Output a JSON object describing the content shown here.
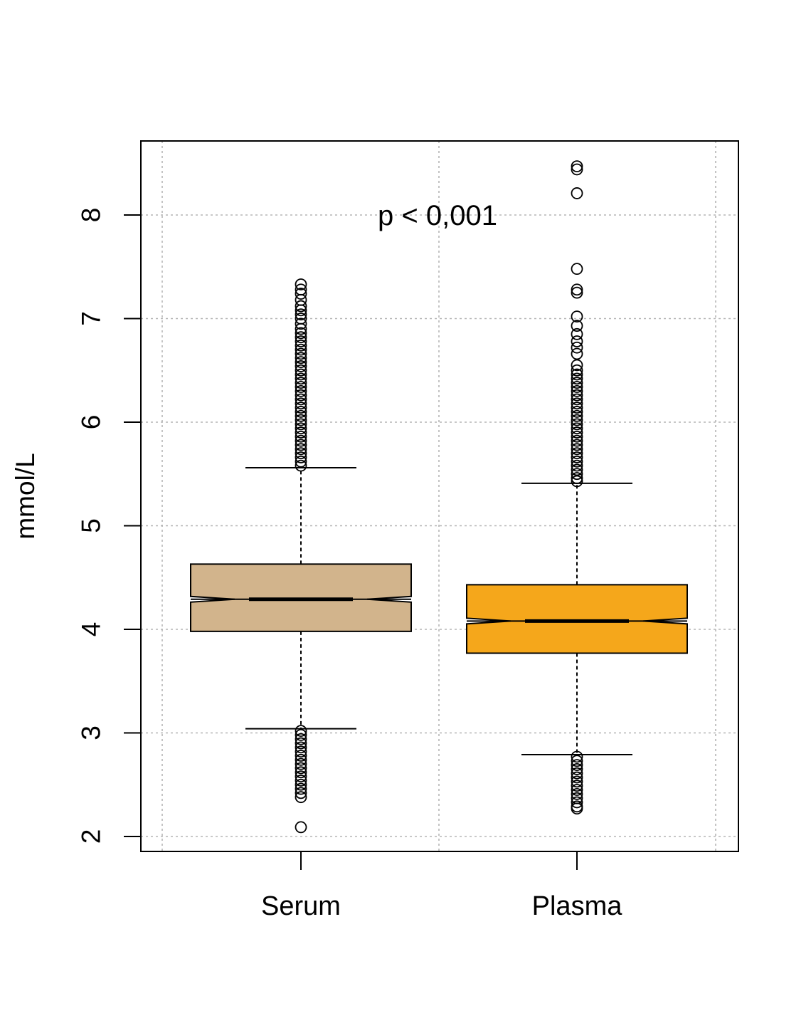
{
  "chart_data": {
    "type": "box",
    "title": "",
    "xlabel": "",
    "ylabel": "mmol/L",
    "ylim": [
      1.85,
      8.75
    ],
    "yticks": [
      2,
      3,
      4,
      5,
      6,
      7,
      8
    ],
    "grid": true,
    "notched": true,
    "annotation": "p < 0,001",
    "categories": [
      "Serum",
      "Plasma"
    ],
    "boxes": [
      {
        "category": "Serum",
        "color": "#d2b48c",
        "q1": 3.98,
        "median": 4.29,
        "q3": 4.63,
        "whisker_low": 3.04,
        "whisker_high": 5.56,
        "outliers": [
          7.33,
          7.28,
          7.24,
          7.18,
          7.12,
          7.08,
          7.04,
          7.0,
          6.95,
          6.9,
          6.86,
          6.82,
          6.78,
          6.74,
          6.7,
          6.66,
          6.62,
          6.58,
          6.54,
          6.5,
          6.46,
          6.42,
          6.38,
          6.34,
          6.3,
          6.26,
          6.22,
          6.18,
          6.14,
          6.1,
          6.06,
          6.02,
          5.98,
          5.94,
          5.9,
          5.86,
          5.82,
          5.78,
          5.74,
          5.7,
          5.66,
          5.62,
          5.58,
          3.02,
          2.98,
          2.94,
          2.9,
          2.86,
          2.82,
          2.78,
          2.74,
          2.7,
          2.66,
          2.62,
          2.58,
          2.54,
          2.5,
          2.46,
          2.42,
          2.38,
          2.09
        ]
      },
      {
        "category": "Plasma",
        "color": "#f5a71b",
        "q1": 3.77,
        "median": 4.08,
        "q3": 4.43,
        "whisker_low": 2.79,
        "whisker_high": 5.41,
        "outliers": [
          8.47,
          8.44,
          8.21,
          7.48,
          7.28,
          7.25,
          7.02,
          6.93,
          6.85,
          6.78,
          6.72,
          6.66,
          6.55,
          6.5,
          6.46,
          6.42,
          6.38,
          6.34,
          6.3,
          6.26,
          6.22,
          6.18,
          6.14,
          6.1,
          6.06,
          6.02,
          5.98,
          5.94,
          5.9,
          5.86,
          5.82,
          5.78,
          5.74,
          5.7,
          5.66,
          5.62,
          5.58,
          5.54,
          5.5,
          5.46,
          5.43,
          2.77,
          2.73,
          2.69,
          2.65,
          2.61,
          2.57,
          2.53,
          2.49,
          2.45,
          2.41,
          2.37,
          2.33,
          2.29,
          2.27
        ]
      }
    ]
  }
}
